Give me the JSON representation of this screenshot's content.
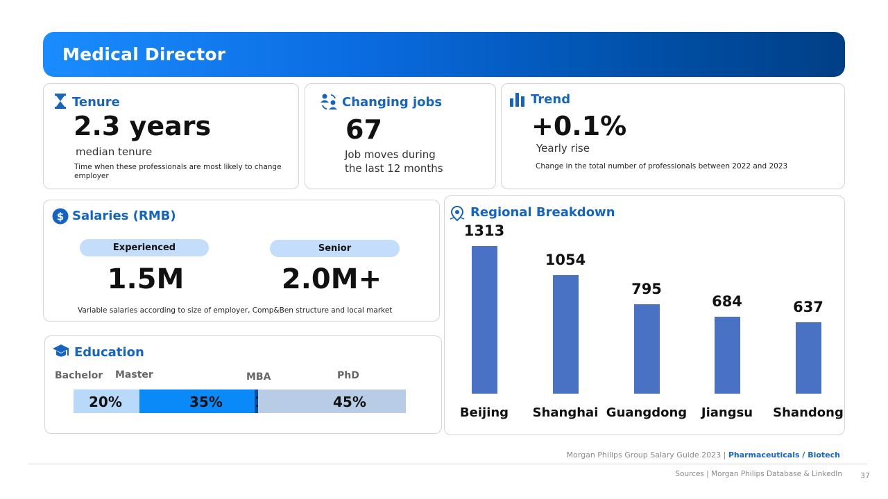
{
  "header": {
    "title": "Medical Director"
  },
  "tenure": {
    "title": "Tenure",
    "value": "2.3 years",
    "subtitle": "median tenure",
    "note": "Time when these professionals are most likely to  change employer"
  },
  "changing_jobs": {
    "title": "Changing jobs",
    "value": "67",
    "subtitle_line1": "Job moves during",
    "subtitle_line2": "the last 12 months"
  },
  "trend": {
    "title": "Trend",
    "value": "+0.1%",
    "subtitle": "Yearly rise",
    "note": "Change in the total number of professionals between 2022 and 2023"
  },
  "salaries": {
    "title": "Salaries (RMB)",
    "experienced_label": "Experienced",
    "experienced_value": "1.5M",
    "senior_label": "Senior",
    "senior_value": "2.0M+",
    "note": "Variable salaries according to size of employer, Comp&Ben structure and local market"
  },
  "education": {
    "title": "Education",
    "segments": [
      {
        "label": "Bachelor",
        "value": "20%",
        "percent": 20,
        "color": "#b9d9fb"
      },
      {
        "label": "Master",
        "value": "35%",
        "percent": 35,
        "color": "#0a8af8"
      },
      {
        "label": "MBA",
        "value": "1%",
        "percent": 1,
        "color": "#0d4fa3"
      },
      {
        "label": "PhD",
        "value": "45%",
        "percent": 45,
        "color": "#b8cce6"
      }
    ]
  },
  "regional": {
    "title": "Regional Breakdown"
  },
  "chart_data": {
    "type": "bar",
    "title": "Regional Breakdown",
    "categories": [
      "Beijing",
      "Shanghai",
      "Guangdong",
      "Jiangsu",
      "Shandong"
    ],
    "values": [
      1313,
      1054,
      795,
      684,
      637
    ],
    "value_labels": [
      "1313",
      "1054",
      "795",
      "684",
      "637"
    ],
    "xlabel": "",
    "ylabel": "",
    "ylim": [
      0,
      1313
    ],
    "color": "#4a72c4",
    "grid": false
  },
  "footer": {
    "guide_prefix": "Morgan Philips Group Salary Guide 2023 |",
    "guide_sector": "Pharmaceuticals / Biotech",
    "sources": "Sources | Morgan Philips Database & LinkedIn",
    "page_number": "37"
  }
}
